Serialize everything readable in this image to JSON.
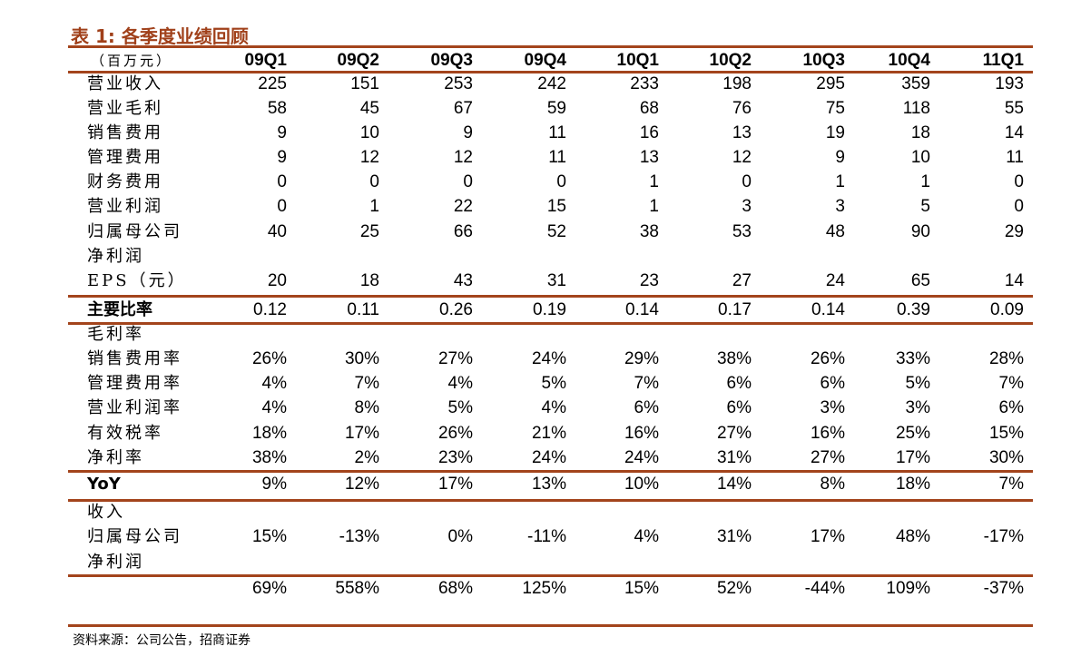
{
  "title": "表 1:  各季度业绩回顾",
  "table": {
    "unit_label": "（百万元）",
    "columns": [
      "09Q1",
      "09Q2",
      "09Q3",
      "09Q4",
      "10Q1",
      "10Q2",
      "10Q3",
      "10Q4",
      "11Q1"
    ],
    "rows": [
      {
        "label": "营业收入",
        "values": [
          "225",
          "151",
          "253",
          "242",
          "233",
          "198",
          "295",
          "359",
          "193"
        ]
      },
      {
        "label": "营业毛利",
        "values": [
          "58",
          "45",
          "67",
          "59",
          "68",
          "76",
          "75",
          "118",
          "55"
        ]
      },
      {
        "label": "销售费用",
        "values": [
          "9",
          "10",
          "9",
          "11",
          "16",
          "13",
          "19",
          "18",
          "14"
        ]
      },
      {
        "label": "管理费用",
        "values": [
          "9",
          "12",
          "12",
          "11",
          "13",
          "12",
          "9",
          "10",
          "11"
        ]
      },
      {
        "label": "财务费用",
        "values": [
          "0",
          "0",
          "0",
          "0",
          "1",
          "0",
          "1",
          "1",
          "0"
        ]
      },
      {
        "label": "营业利润",
        "values": [
          "0",
          "1",
          "22",
          "15",
          "1",
          "3",
          "3",
          "5",
          "0"
        ]
      },
      {
        "label": "归属母公司",
        "values": [
          "40",
          "25",
          "66",
          "52",
          "38",
          "53",
          "48",
          "90",
          "29"
        ]
      },
      {
        "label": "净利润",
        "values": []
      },
      {
        "label": "EPS（元）",
        "values": [
          "20",
          "18",
          "43",
          "31",
          "23",
          "27",
          "24",
          "65",
          "14"
        ]
      },
      {
        "label": "主要比率",
        "bold": true,
        "values": [
          "0.12",
          "0.11",
          "0.26",
          "0.19",
          "0.14",
          "0.17",
          "0.14",
          "0.39",
          "0.09"
        ]
      },
      {
        "label": "毛利率",
        "values": []
      },
      {
        "label": "销售费用率",
        "values": [
          "26%",
          "30%",
          "27%",
          "24%",
          "29%",
          "38%",
          "26%",
          "33%",
          "28%"
        ]
      },
      {
        "label": "管理费用率",
        "values": [
          "4%",
          "7%",
          "4%",
          "5%",
          "7%",
          "6%",
          "6%",
          "5%",
          "7%"
        ]
      },
      {
        "label": "营业利润率",
        "values": [
          "4%",
          "8%",
          "5%",
          "4%",
          "6%",
          "6%",
          "3%",
          "3%",
          "6%"
        ]
      },
      {
        "label": "有效税率",
        "values": [
          "18%",
          "17%",
          "26%",
          "21%",
          "16%",
          "27%",
          "16%",
          "25%",
          "15%"
        ]
      },
      {
        "label": "净利率",
        "values": [
          "38%",
          "2%",
          "23%",
          "24%",
          "24%",
          "31%",
          "27%",
          "17%",
          "30%"
        ]
      },
      {
        "label": "YoY",
        "bold": true,
        "values": [
          "9%",
          "12%",
          "17%",
          "13%",
          "10%",
          "14%",
          "8%",
          "18%",
          "7%"
        ]
      },
      {
        "label": "收入",
        "values": []
      },
      {
        "label": "归属母公司",
        "values": [
          "15%",
          "-13%",
          "0%",
          "-11%",
          "4%",
          "31%",
          "17%",
          "48%",
          "-17%"
        ]
      },
      {
        "label": "净利润",
        "values": []
      },
      {
        "label": "",
        "values": [
          "69%",
          "558%",
          "68%",
          "125%",
          "15%",
          "52%",
          "-44%",
          "109%",
          "-37%"
        ]
      }
    ]
  },
  "source": "资料来源：公司公告，招商证券",
  "colors": {
    "accent": "#a3441c"
  }
}
